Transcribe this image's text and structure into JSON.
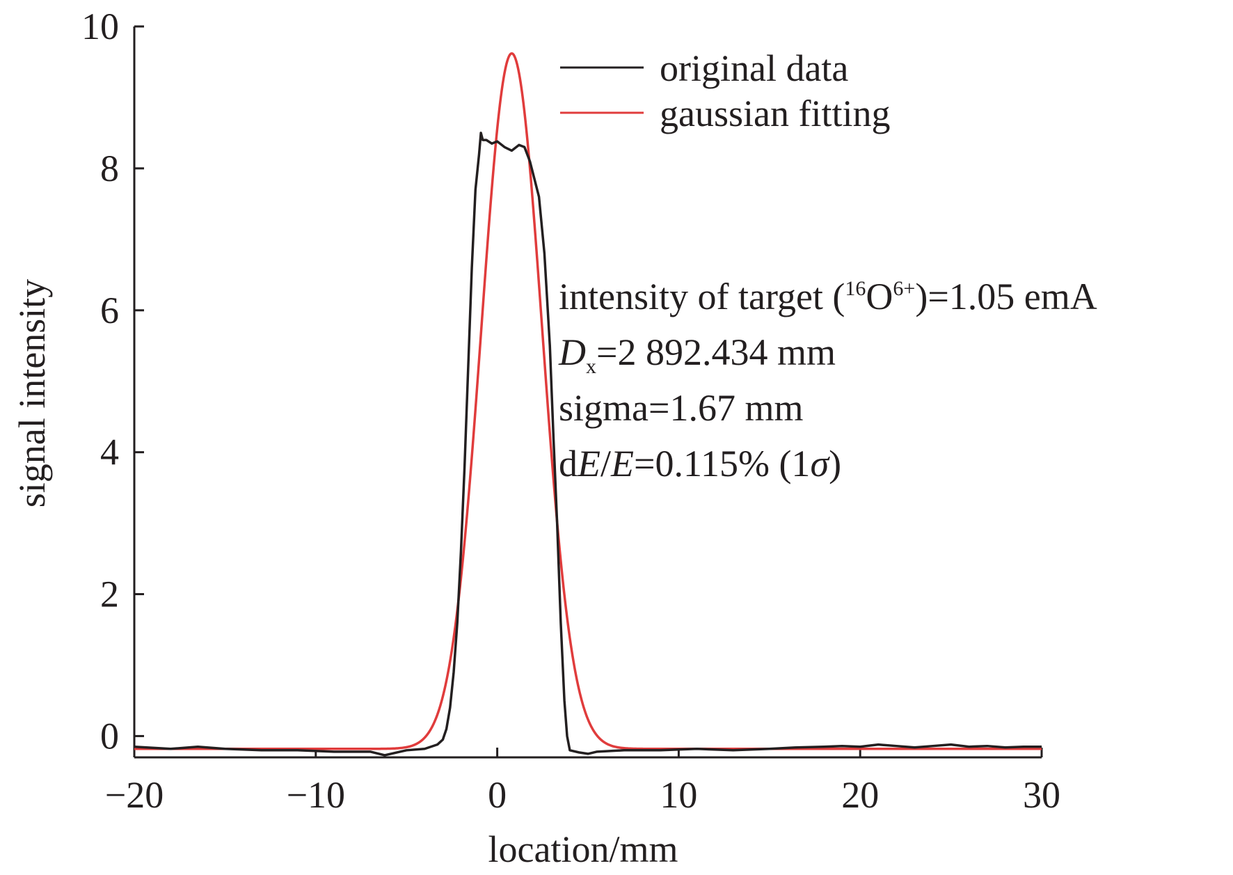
{
  "chart_data": {
    "type": "line",
    "xlabel": "location/mm",
    "ylabel": "signal intensity",
    "xlim": [
      -20,
      30
    ],
    "ylim": [
      -0.3,
      10
    ],
    "xticks": [
      -20,
      -10,
      0,
      10,
      20,
      30
    ],
    "xtick_labels": [
      "−20",
      "−10",
      "0",
      "10",
      "20",
      "30"
    ],
    "yticks": [
      0,
      2,
      4,
      6,
      8,
      10
    ],
    "ytick_labels": [
      "0",
      "2",
      "4",
      "6",
      "8",
      "10"
    ],
    "legend_position": "top-right",
    "series": [
      {
        "name": "original data",
        "color": "#231f20",
        "x": [
          -20,
          -18,
          -16.5,
          -15,
          -13,
          -11,
          -9,
          -7,
          -6.2,
          -5,
          -4,
          -3.3,
          -3,
          -2.8,
          -2.6,
          -2.4,
          -2.2,
          -2,
          -1.8,
          -1.6,
          -1.4,
          -1.2,
          -1,
          -0.9,
          -0.8,
          -0.6,
          -0.3,
          0,
          0.4,
          0.8,
          1.2,
          1.5,
          1.8,
          2,
          2.3,
          2.6,
          2.9,
          3.1,
          3.3,
          3.5,
          3.7,
          3.85,
          4,
          4.5,
          5,
          5.5,
          7,
          9,
          11,
          13,
          15,
          16.5,
          18,
          19,
          20,
          21,
          22,
          23,
          24,
          25,
          26,
          27,
          28,
          29,
          30
        ],
        "y": [
          -0.15,
          -0.18,
          -0.15,
          -0.18,
          -0.2,
          -0.2,
          -0.22,
          -0.22,
          -0.27,
          -0.2,
          -0.18,
          -0.12,
          -0.05,
          0.1,
          0.4,
          0.9,
          1.6,
          2.6,
          3.8,
          5.2,
          6.6,
          7.7,
          8.2,
          8.5,
          8.4,
          8.4,
          8.35,
          8.38,
          8.3,
          8.25,
          8.33,
          8.3,
          8.1,
          7.9,
          7.6,
          6.8,
          5.5,
          4.2,
          3.0,
          1.6,
          0.5,
          0.0,
          -0.2,
          -0.23,
          -0.25,
          -0.22,
          -0.2,
          -0.2,
          -0.18,
          -0.2,
          -0.18,
          -0.16,
          -0.15,
          -0.14,
          -0.15,
          -0.12,
          -0.14,
          -0.16,
          -0.14,
          -0.12,
          -0.15,
          -0.14,
          -0.16,
          -0.15,
          -0.15
        ]
      },
      {
        "name": "gaussian fitting",
        "color": "#e03c3c",
        "model": "gaussian",
        "amplitude": 9.8,
        "center": 0.8,
        "sigma": 1.67,
        "baseline": -0.18
      }
    ],
    "annotations": [
      {
        "id": "intensity",
        "parts": [
          "intensity of target (",
          "16",
          "O",
          "6+",
          ")=1.05 emA"
        ]
      },
      {
        "id": "dx",
        "parts": [
          "D",
          "x",
          "=2 892.434 mm"
        ]
      },
      {
        "id": "sigma",
        "text": "sigma=1.67 mm"
      },
      {
        "id": "de",
        "parts": [
          "d",
          "E",
          "/",
          "E",
          "=0.115% (1",
          "σ",
          ")"
        ]
      }
    ]
  }
}
